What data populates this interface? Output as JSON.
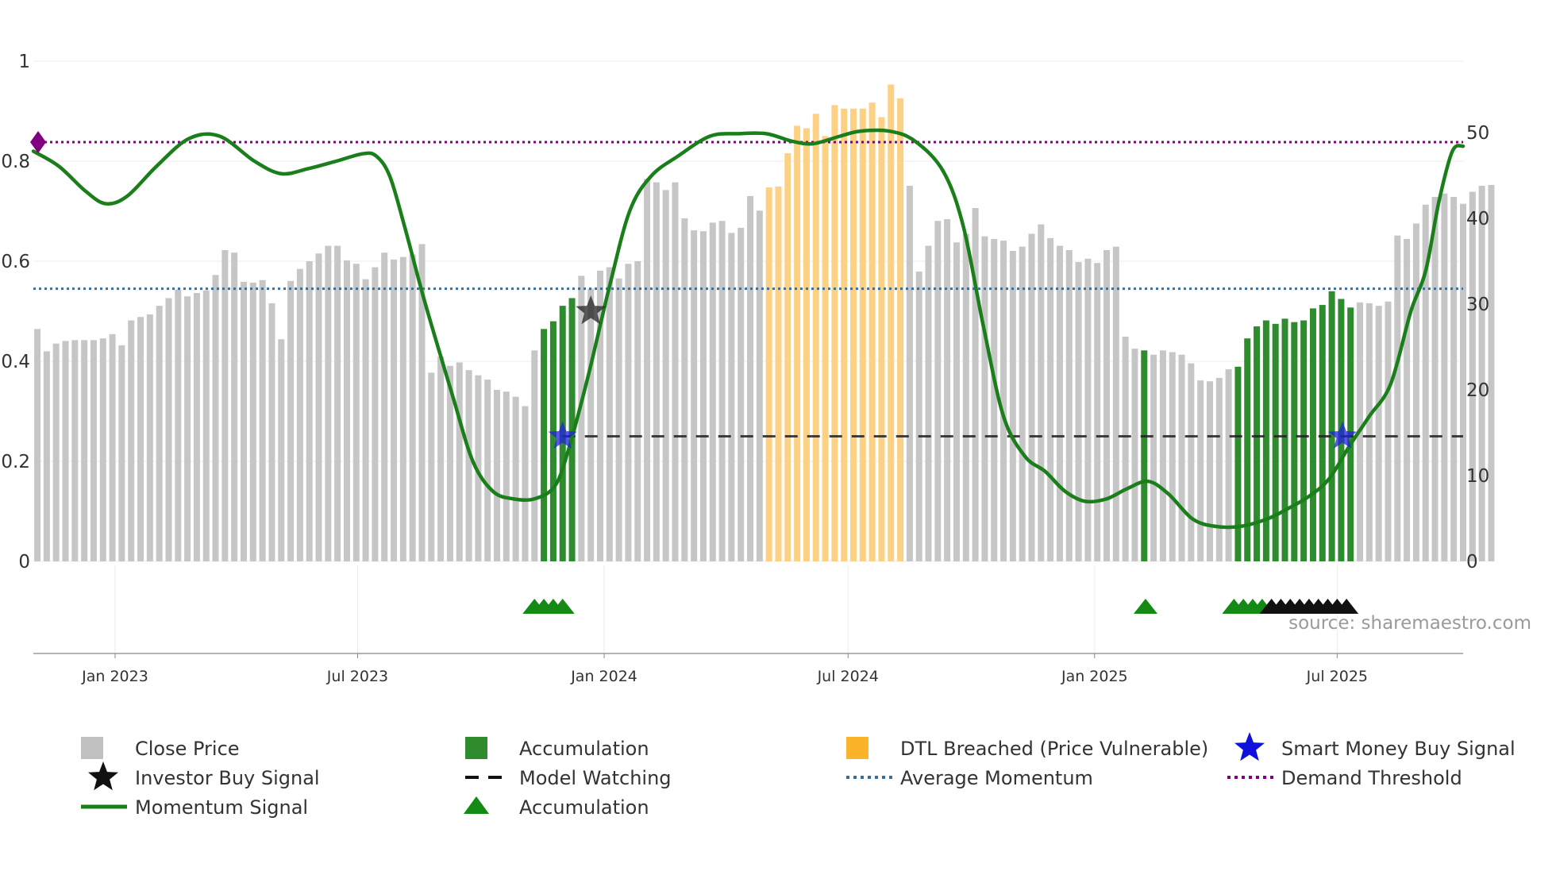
{
  "chart_data": {
    "type": "bar+line",
    "source": "source: sharemaestro.com",
    "left_axis": {
      "ticks": [
        0,
        0.2,
        0.4,
        0.6,
        0.8,
        1
      ],
      "tick_labels": [
        "0",
        "0.2",
        "0.4",
        "0.6",
        "0.8",
        "1"
      ],
      "range": [
        0,
        1.05
      ]
    },
    "right_axis": {
      "ticks": [
        0,
        10,
        20,
        30,
        40,
        50
      ],
      "tick_labels": [
        "0",
        "10",
        "20",
        "30",
        "40",
        "50"
      ],
      "range": [
        0,
        56
      ]
    },
    "x_axis": {
      "start": "2022-11-01",
      "end": "2025-10-03",
      "ticks": [
        "2023-01-01",
        "2023-07-01",
        "2024-01-01",
        "2024-07-01",
        "2025-01-01",
        "2025-07-01"
      ],
      "tick_labels": [
        "Jan 2023",
        "Jul 2023",
        "Jan 2024",
        "Jul 2024",
        "Jan 2025",
        "Jul 2025"
      ]
    },
    "bars": {
      "start_date": "2022-11-04",
      "interval_days": 7,
      "values": [
        27.1,
        24.5,
        25.4,
        25.7,
        25.8,
        25.8,
        25.8,
        26.0,
        26.5,
        25.2,
        28.1,
        28.5,
        28.8,
        29.8,
        30.7,
        31.7,
        30.9,
        31.3,
        31.6,
        33.4,
        36.3,
        36.0,
        32.6,
        32.5,
        32.8,
        30.1,
        25.9,
        32.7,
        34.1,
        35.0,
        35.9,
        36.8,
        36.8,
        35.1,
        34.7,
        32.9,
        34.3,
        36.0,
        35.2,
        35.5,
        35.8,
        37.0,
        22.0,
        23.9,
        22.8,
        23.2,
        22.3,
        21.7,
        21.2,
        20.0,
        19.8,
        19.2,
        18.1,
        24.6,
        27.1,
        28.0,
        29.8,
        30.7,
        33.3,
        31.8,
        33.9,
        34.3,
        33.0,
        34.7,
        35.0,
        44.6,
        44.2,
        43.3,
        44.2,
        40.0,
        38.6,
        38.5,
        39.5,
        39.7,
        38.3,
        38.9,
        42.6,
        40.9,
        43.6,
        43.7,
        47.6,
        50.8,
        50.5,
        52.2,
        49.6,
        53.2,
        52.8,
        52.8,
        52.8,
        53.5,
        51.8,
        55.6,
        54.0,
        43.8,
        33.8,
        36.8,
        39.7,
        39.9,
        37.2,
        38.2,
        41.2,
        37.9,
        37.6,
        37.4,
        36.2,
        36.7,
        38.2,
        39.3,
        37.7,
        36.8,
        36.3,
        34.9,
        35.3,
        34.8,
        36.3,
        36.7,
        26.2,
        24.8,
        24.6,
        24.1,
        24.6,
        24.4,
        24.1,
        23.1,
        21.1,
        21.0,
        21.4,
        22.4,
        22.7,
        26.0,
        27.4,
        28.1,
        27.7,
        28.3,
        27.9,
        28.1,
        29.5,
        29.9,
        31.5,
        30.6,
        29.6,
        30.2,
        30.1,
        29.8,
        30.3,
        38.0,
        37.6,
        39.4,
        41.6,
        42.5,
        42.9,
        42.5,
        41.7,
        43.1,
        43.8,
        43.9
      ],
      "categories": {
        "close_price": "#c6c6c6",
        "accumulation": "#2e8b2e",
        "dtl_breached": "#fdd184"
      },
      "accumulation_ranges": [
        [
          54,
          57
        ],
        [
          118,
          118
        ],
        [
          128,
          140
        ]
      ],
      "dtl_breached_ranges": [
        [
          78,
          92
        ]
      ]
    },
    "momentum_signal": {
      "color": "#1a7f1a",
      "points": [
        [
          "2022-11-01",
          0.82
        ],
        [
          "2022-11-20",
          0.79
        ],
        [
          "2022-12-10",
          0.74
        ],
        [
          "2022-12-25",
          0.715
        ],
        [
          "2023-01-10",
          0.73
        ],
        [
          "2023-02-01",
          0.79
        ],
        [
          "2023-02-25",
          0.845
        ],
        [
          "2023-03-20",
          0.85
        ],
        [
          "2023-04-15",
          0.8
        ],
        [
          "2023-05-05",
          0.775
        ],
        [
          "2023-05-25",
          0.785
        ],
        [
          "2023-06-15",
          0.8
        ],
        [
          "2023-07-05",
          0.815
        ],
        [
          "2023-07-15",
          0.81
        ],
        [
          "2023-07-25",
          0.77
        ],
        [
          "2023-08-05",
          0.67
        ],
        [
          "2023-08-20",
          0.52
        ],
        [
          "2023-09-10",
          0.33
        ],
        [
          "2023-09-25",
          0.2
        ],
        [
          "2023-10-10",
          0.14
        ],
        [
          "2023-10-25",
          0.125
        ],
        [
          "2023-11-10",
          0.125
        ],
        [
          "2023-11-25",
          0.15
        ],
        [
          "2023-12-05",
          0.22
        ],
        [
          "2023-12-20",
          0.37
        ],
        [
          "2024-01-05",
          0.55
        ],
        [
          "2024-01-20",
          0.7
        ],
        [
          "2024-02-05",
          0.77
        ],
        [
          "2024-02-25",
          0.81
        ],
        [
          "2024-03-20",
          0.85
        ],
        [
          "2024-04-10",
          0.855
        ],
        [
          "2024-05-01",
          0.855
        ],
        [
          "2024-05-20",
          0.84
        ],
        [
          "2024-06-05",
          0.835
        ],
        [
          "2024-06-25",
          0.85
        ],
        [
          "2024-07-10",
          0.86
        ],
        [
          "2024-08-01",
          0.86
        ],
        [
          "2024-08-20",
          0.84
        ],
        [
          "2024-09-10",
          0.78
        ],
        [
          "2024-09-25",
          0.67
        ],
        [
          "2024-10-10",
          0.47
        ],
        [
          "2024-10-25",
          0.29
        ],
        [
          "2024-11-10",
          0.21
        ],
        [
          "2024-11-25",
          0.18
        ],
        [
          "2024-12-10",
          0.14
        ],
        [
          "2024-12-25",
          0.12
        ],
        [
          "2025-01-10",
          0.125
        ],
        [
          "2025-01-25",
          0.145
        ],
        [
          "2025-02-10",
          0.16
        ],
        [
          "2025-02-25",
          0.135
        ],
        [
          "2025-03-15",
          0.085
        ],
        [
          "2025-04-01",
          0.07
        ],
        [
          "2025-04-20",
          0.07
        ],
        [
          "2025-05-10",
          0.085
        ],
        [
          "2025-05-25",
          0.105
        ],
        [
          "2025-06-10",
          0.13
        ],
        [
          "2025-06-25",
          0.165
        ],
        [
          "2025-07-10",
          0.23
        ],
        [
          "2025-07-25",
          0.29
        ],
        [
          "2025-08-10",
          0.355
        ],
        [
          "2025-08-25",
          0.5
        ],
        [
          "2025-09-05",
          0.58
        ],
        [
          "2025-09-15",
          0.72
        ],
        [
          "2025-09-25",
          0.82
        ],
        [
          "2025-10-03",
          0.83
        ]
      ]
    },
    "average_momentum": {
      "value": 0.545,
      "color": "#3a6f9b"
    },
    "demand_threshold": {
      "value": 0.838,
      "color": "#800080"
    },
    "model_watching": {
      "value": 0.25,
      "start": "2023-12-01",
      "end": "2025-10-03",
      "color": "#222222"
    },
    "smart_money_buy_signal": {
      "color": "#2020e0",
      "points": [
        [
          "2023-12-01",
          0.25
        ],
        [
          "2025-07-05",
          0.25
        ]
      ]
    },
    "investor_buy_signal": {
      "color": "#222222",
      "points": [
        [
          "2023-12-22",
          0.5
        ]
      ]
    },
    "start_marker": {
      "date": "2022-11-01",
      "value": 0.838,
      "color": "#800080"
    },
    "accumulation_triangles": {
      "green": [
        "2023-11-10",
        "2023-11-17",
        "2023-11-24",
        "2023-12-01",
        "2025-02-08",
        "2025-04-15",
        "2025-04-22",
        "2025-04-29",
        "2025-05-06"
      ],
      "black": [
        "2025-05-13",
        "2025-05-20",
        "2025-05-27",
        "2025-06-03",
        "2025-06-10",
        "2025-06-17",
        "2025-06-24",
        "2025-07-01",
        "2025-07-08"
      ],
      "green_color": "#138a13",
      "black_color": "#111111"
    },
    "legend": [
      {
        "label": "Close Price",
        "symbol": "square",
        "color": "#c0c0c0"
      },
      {
        "label": "Accumulation",
        "symbol": "square",
        "color": "#2e8b2e"
      },
      {
        "label": "DTL Breached (Price Vulnerable)",
        "symbol": "square",
        "color": "#fbb32a"
      },
      {
        "label": "Smart Money Buy Signal",
        "symbol": "star",
        "color": "#1010dd"
      },
      {
        "label": "Investor Buy Signal",
        "symbol": "star",
        "color": "#111111"
      },
      {
        "label": "Model Watching",
        "symbol": "dash",
        "color": "#111111"
      },
      {
        "label": "Average Momentum",
        "symbol": "dot",
        "color": "#3a6f9b"
      },
      {
        "label": "Demand Threshold",
        "symbol": "dot",
        "color": "#800080"
      },
      {
        "label": "Momentum Signal",
        "symbol": "line",
        "color": "#1a7f1a"
      },
      {
        "label": "Accumulation",
        "symbol": "triangle",
        "color": "#138a13"
      }
    ]
  }
}
